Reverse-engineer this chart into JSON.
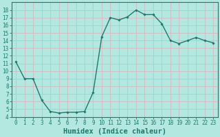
{
  "x": [
    0,
    1,
    2,
    3,
    4,
    5,
    6,
    7,
    8,
    9,
    10,
    11,
    12,
    13,
    14,
    15,
    16,
    17,
    18,
    19,
    20,
    21,
    22,
    23
  ],
  "y": [
    11.2,
    9.0,
    9.0,
    6.2,
    4.7,
    4.5,
    4.6,
    4.6,
    4.7,
    7.2,
    14.5,
    17.0,
    16.7,
    17.1,
    18.0,
    17.4,
    17.4,
    16.2,
    14.0,
    13.6,
    14.0,
    14.4,
    14.0,
    13.7
  ],
  "line_color": "#1a7a6e",
  "marker": "D",
  "marker_size": 1.8,
  "line_width": 1.0,
  "bg_color": "#b2e8e0",
  "grid_color": "#d4b8c0",
  "xlabel": "Humidex (Indice chaleur)",
  "ylim": [
    4,
    19
  ],
  "xlim": [
    -0.5,
    23.5
  ],
  "yticks": [
    4,
    5,
    6,
    7,
    8,
    9,
    10,
    11,
    12,
    13,
    14,
    15,
    16,
    17,
    18
  ],
  "xticks": [
    0,
    1,
    2,
    3,
    4,
    5,
    6,
    7,
    8,
    9,
    10,
    11,
    12,
    13,
    14,
    15,
    16,
    17,
    18,
    19,
    20,
    21,
    22,
    23
  ],
  "tick_label_fontsize": 5.5,
  "xlabel_fontsize": 7.5,
  "spine_color": "#1a7a6e",
  "tick_color": "#1a7a6e"
}
